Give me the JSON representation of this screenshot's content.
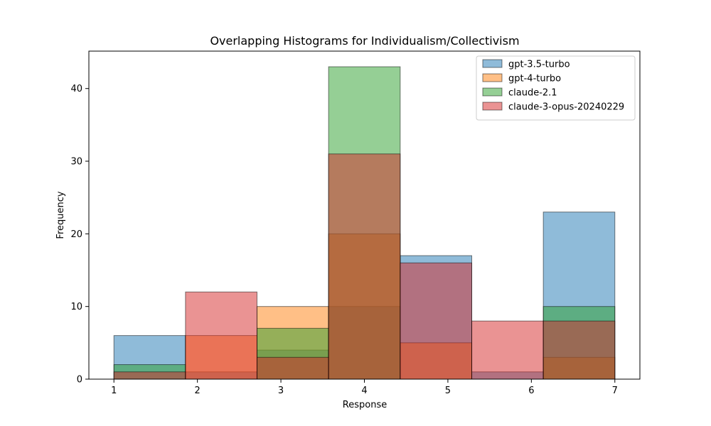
{
  "chart_data": {
    "type": "bar",
    "title": "Overlapping Histograms for Individualism/Collectivism",
    "xlabel": "Response",
    "ylabel": "Frequency",
    "xlim": [
      0.7,
      7.3
    ],
    "ylim": [
      0,
      45.15
    ],
    "xticks": [
      1,
      2,
      3,
      4,
      5,
      6,
      7
    ],
    "yticks": [
      0,
      10,
      20,
      30,
      40
    ],
    "bin_edges": [
      1,
      1.857,
      2.714,
      3.571,
      4.429,
      5.286,
      6.143,
      7
    ],
    "bar_alpha": 0.5,
    "legend_position": "upper right",
    "series": [
      {
        "name": "gpt-3.5-turbo",
        "color": "#1f77b4",
        "values": [
          6,
          1,
          4,
          10,
          17,
          1,
          23
        ]
      },
      {
        "name": "gpt-4-turbo",
        "color": "#ff7f0e",
        "values": [
          0,
          6,
          10,
          20,
          5,
          0,
          3
        ]
      },
      {
        "name": "claude-2.1",
        "color": "#2ca02c",
        "values": [
          2,
          0,
          7,
          43,
          0,
          0,
          10
        ]
      },
      {
        "name": "claude-3-opus-20240229",
        "color": "#d62728",
        "values": [
          1,
          12,
          3,
          31,
          16,
          8,
          8
        ]
      }
    ]
  }
}
